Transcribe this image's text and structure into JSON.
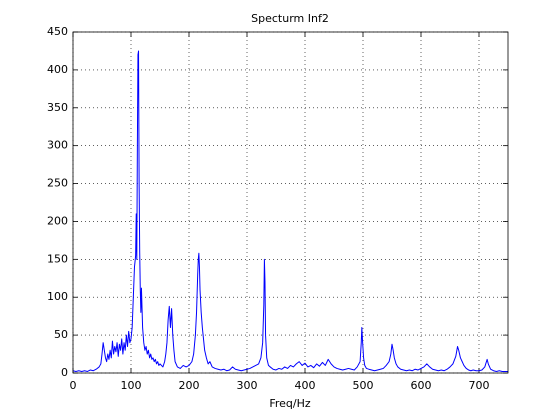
{
  "chart_data": {
    "type": "line",
    "title": "Specturm Inf2",
    "x_label": "Freq/Hz",
    "x": [
      0,
      5,
      10,
      15,
      20,
      25,
      30,
      35,
      40,
      45,
      48,
      50,
      52,
      54,
      56,
      58,
      60,
      62,
      64,
      66,
      68,
      70,
      72,
      74,
      76,
      78,
      80,
      82,
      84,
      86,
      88,
      90,
      92,
      94,
      96,
      98,
      100,
      102,
      104,
      106,
      108,
      109,
      110,
      111,
      112,
      113,
      114,
      115,
      116,
      117,
      118,
      120,
      122,
      124,
      126,
      128,
      130,
      132,
      134,
      136,
      138,
      140,
      142,
      144,
      146,
      148,
      150,
      155,
      158,
      160,
      162,
      164,
      166,
      168,
      170,
      172,
      174,
      176,
      180,
      185,
      190,
      195,
      200,
      205,
      208,
      211,
      213,
      215,
      216,
      217,
      218,
      219,
      221,
      223,
      225,
      227,
      230,
      233,
      236,
      240,
      245,
      250,
      255,
      260,
      265,
      270,
      275,
      280,
      285,
      290,
      295,
      300,
      305,
      310,
      315,
      320,
      324,
      327,
      329,
      330,
      331,
      332,
      334,
      337,
      340,
      345,
      350,
      355,
      360,
      365,
      370,
      375,
      380,
      385,
      390,
      395,
      400,
      405,
      410,
      415,
      420,
      425,
      430,
      435,
      440,
      445,
      450,
      455,
      460,
      465,
      470,
      475,
      480,
      485,
      490,
      495,
      497,
      498,
      499,
      501,
      503,
      506,
      510,
      515,
      520,
      525,
      530,
      535,
      540,
      545,
      548,
      550,
      552,
      554,
      557,
      560,
      565,
      570,
      575,
      580,
      585,
      590,
      595,
      600,
      605,
      610,
      615,
      620,
      625,
      630,
      635,
      640,
      645,
      650,
      655,
      660,
      663,
      665,
      668,
      671,
      674,
      678,
      682,
      686,
      690,
      695,
      700,
      705,
      710,
      714,
      716,
      720,
      725,
      730,
      735,
      740,
      745,
      750
    ],
    "series": [
      {
        "color": "#0000ff",
        "values": [
          3,
          2,
          3,
          2,
          3,
          2,
          4,
          3,
          5,
          8,
          12,
          25,
          40,
          30,
          20,
          15,
          25,
          18,
          30,
          20,
          42,
          25,
          35,
          28,
          40,
          22,
          38,
          30,
          45,
          25,
          40,
          30,
          50,
          35,
          55,
          40,
          45,
          60,
          100,
          140,
          155,
          210,
          150,
          300,
          420,
          425,
          250,
          160,
          110,
          80,
          112,
          60,
          40,
          30,
          35,
          25,
          30,
          20,
          25,
          18,
          20,
          15,
          18,
          12,
          15,
          10,
          12,
          8,
          15,
          25,
          40,
          70,
          88,
          60,
          85,
          50,
          30,
          15,
          8,
          6,
          10,
          8,
          10,
          15,
          25,
          50,
          80,
          130,
          150,
          158,
          140,
          110,
          80,
          60,
          45,
          30,
          20,
          12,
          15,
          8,
          6,
          5,
          4,
          5,
          3,
          4,
          8,
          5,
          4,
          3,
          4,
          5,
          6,
          8,
          10,
          12,
          20,
          40,
          90,
          150,
          120,
          50,
          20,
          10,
          8,
          5,
          4,
          6,
          5,
          8,
          6,
          10,
          8,
          12,
          15,
          10,
          13,
          8,
          10,
          7,
          12,
          9,
          14,
          10,
          18,
          12,
          8,
          6,
          5,
          4,
          5,
          6,
          5,
          4,
          8,
          15,
          40,
          60,
          45,
          20,
          10,
          6,
          5,
          4,
          3,
          4,
          5,
          6,
          10,
          15,
          25,
          38,
          30,
          20,
          12,
          8,
          5,
          4,
          3,
          4,
          3,
          5,
          4,
          6,
          8,
          12,
          8,
          5,
          4,
          3,
          4,
          3,
          5,
          8,
          12,
          22,
          35,
          30,
          20,
          15,
          10,
          6,
          4,
          3,
          4,
          3,
          3,
          4,
          8,
          18,
          12,
          5,
          3,
          2,
          3,
          2,
          2,
          2
        ]
      }
    ],
    "xlim": [
      0,
      750
    ],
    "xticks": [
      0,
      100,
      200,
      300,
      400,
      500,
      600,
      700
    ],
    "ylim": [
      0,
      450
    ],
    "yticks": [
      0,
      50,
      100,
      150,
      200,
      250,
      300,
      350,
      400,
      450
    ],
    "grid": true
  }
}
